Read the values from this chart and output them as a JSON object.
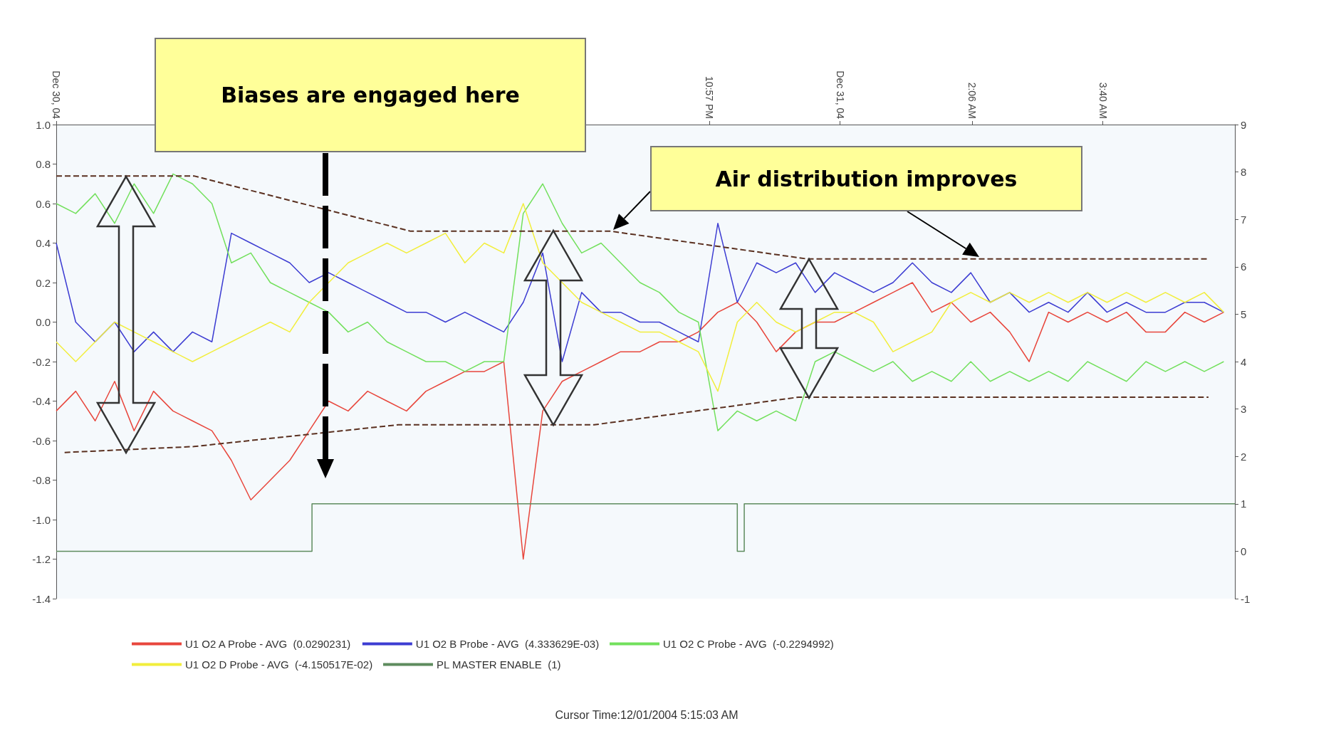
{
  "chart_data": {
    "type": "line",
    "xlim": [
      "2004-12-30T15:07",
      "2004-12-31T05:15"
    ],
    "xticks": [
      {
        "value": "2004-12-30T15:07",
        "label": "Dec 30, 04"
      },
      {
        "value": "2004-12-30T16:41",
        "label": null
      },
      {
        "value": "2004-12-30T18:15",
        "label": null
      },
      {
        "value": "2004-12-30T19:49",
        "label": null
      },
      {
        "value": "2004-12-30T21:23",
        "label": null
      },
      {
        "value": "2004-12-30T22:57",
        "label": "10:57 PM"
      },
      {
        "value": "2004-12-31T00:31",
        "label": "Dec 31, 04"
      },
      {
        "value": "2004-12-31T02:06",
        "label": "2:06 AM"
      },
      {
        "value": "2004-12-31T03:40",
        "label": "3:40 AM"
      }
    ],
    "ylim": [
      -1.4,
      1.0
    ],
    "yticks": [
      {
        "value": 1,
        "label": "1.0"
      },
      {
        "value": 0.8,
        "label": "0.8"
      },
      {
        "value": 0.6,
        "label": "0.6"
      },
      {
        "value": 0.4,
        "label": "0.4"
      },
      {
        "value": 0.2,
        "label": "0.2"
      },
      {
        "value": 0,
        "label": "0.0"
      },
      {
        "value": -0.2,
        "label": "-0.2"
      },
      {
        "value": -0.4,
        "label": "-0.4"
      },
      {
        "value": -0.6,
        "label": "-0.6"
      },
      {
        "value": -0.8,
        "label": "-0.8"
      },
      {
        "value": -1,
        "label": "-1.0"
      },
      {
        "value": -1.2,
        "label": "-1.2"
      },
      {
        "value": -1.4,
        "label": "-1.4"
      }
    ],
    "y2lim": [
      -1,
      9
    ],
    "y2ticks": [
      -1,
      0,
      1,
      2,
      3,
      4,
      5,
      6,
      7,
      8,
      9
    ],
    "x": [
      "2004-12-30T15:07",
      "2004-12-30T15:21",
      "2004-12-30T15:35",
      "2004-12-30T15:49",
      "2004-12-30T16:03",
      "2004-12-30T16:17",
      "2004-12-30T16:31",
      "2004-12-30T16:45",
      "2004-12-30T16:59",
      "2004-12-30T17:13",
      "2004-12-30T17:27",
      "2004-12-30T17:41",
      "2004-12-30T17:55",
      "2004-12-30T18:09",
      "2004-12-30T18:23",
      "2004-12-30T18:37",
      "2004-12-30T18:51",
      "2004-12-30T19:05",
      "2004-12-30T19:19",
      "2004-12-30T19:33",
      "2004-12-30T19:47",
      "2004-12-30T20:01",
      "2004-12-30T20:15",
      "2004-12-30T20:29",
      "2004-12-30T20:43",
      "2004-12-30T20:57",
      "2004-12-30T21:11",
      "2004-12-30T21:25",
      "2004-12-30T21:39",
      "2004-12-30T21:53",
      "2004-12-30T22:07",
      "2004-12-30T22:21",
      "2004-12-30T22:35",
      "2004-12-30T22:49",
      "2004-12-30T23:03",
      "2004-12-30T23:17",
      "2004-12-30T23:31",
      "2004-12-30T23:45",
      "2004-12-30T23:59",
      "2004-12-31T00:13",
      "2004-12-31T00:27",
      "2004-12-31T00:41",
      "2004-12-31T00:55",
      "2004-12-31T01:09",
      "2004-12-31T01:23",
      "2004-12-31T01:37",
      "2004-12-31T01:51",
      "2004-12-31T02:05",
      "2004-12-31T02:19",
      "2004-12-31T02:33",
      "2004-12-31T02:47",
      "2004-12-31T03:01",
      "2004-12-31T03:15",
      "2004-12-31T03:29",
      "2004-12-31T03:43",
      "2004-12-31T03:57",
      "2004-12-31T04:11",
      "2004-12-31T04:25",
      "2004-12-31T04:39",
      "2004-12-31T04:53",
      "2004-12-31T05:07"
    ],
    "legend": "bottom",
    "series": [
      {
        "name": "U1 O2 A Probe - AVG  (0.0290231)",
        "color": "#e8463c",
        "values": [
          -0.45,
          -0.35,
          -0.5,
          -0.3,
          -0.55,
          -0.35,
          -0.45,
          -0.5,
          -0.55,
          -0.7,
          -0.9,
          -0.8,
          -0.7,
          -0.55,
          -0.4,
          -0.45,
          -0.35,
          -0.4,
          -0.45,
          -0.35,
          -0.3,
          -0.25,
          -0.25,
          -0.2,
          -1.2,
          -0.45,
          -0.3,
          -0.25,
          -0.2,
          -0.15,
          -0.15,
          -0.1,
          -0.1,
          -0.05,
          0.05,
          0.1,
          0,
          -0.15,
          -0.05,
          0,
          0,
          0.05,
          0.1,
          0.15,
          0.2,
          0.05,
          0.1,
          0,
          0.05,
          -0.05,
          -0.2,
          0.05,
          0,
          0.05,
          0,
          0.05,
          -0.05,
          -0.05,
          0.05,
          0,
          0.05
        ]
      },
      {
        "name": "U1 O2 B Probe - AVG  (4.333629E-03)",
        "color": "#3c3cd2",
        "values": [
          0.4,
          0,
          -0.1,
          0,
          -0.15,
          -0.05,
          -0.15,
          -0.05,
          -0.1,
          0.45,
          0.4,
          0.35,
          0.3,
          0.2,
          0.25,
          0.2,
          0.15,
          0.1,
          0.05,
          0.05,
          0,
          0.05,
          0,
          -0.05,
          0.1,
          0.35,
          -0.2,
          0.15,
          0.05,
          0.05,
          0,
          0,
          -0.05,
          -0.1,
          0.5,
          0.1,
          0.3,
          0.25,
          0.3,
          0.15,
          0.25,
          0.2,
          0.15,
          0.2,
          0.3,
          0.2,
          0.15,
          0.25,
          0.1,
          0.15,
          0.05,
          0.1,
          0.05,
          0.15,
          0.05,
          0.1,
          0.05,
          0.05,
          0.1,
          0.1,
          0.05
        ]
      },
      {
        "name": "U1 O2 C Probe - AVG  (-0.2294992)",
        "color": "#72e05c",
        "values": [
          0.6,
          0.55,
          0.65,
          0.5,
          0.7,
          0.55,
          0.75,
          0.7,
          0.6,
          0.3,
          0.35,
          0.2,
          0.15,
          0.1,
          0.05,
          -0.05,
          0,
          -0.1,
          -0.15,
          -0.2,
          -0.2,
          -0.25,
          -0.2,
          -0.2,
          0.55,
          0.7,
          0.5,
          0.35,
          0.4,
          0.3,
          0.2,
          0.15,
          0.05,
          0,
          -0.55,
          -0.45,
          -0.5,
          -0.45,
          -0.5,
          -0.2,
          -0.15,
          -0.2,
          -0.25,
          -0.2,
          -0.3,
          -0.25,
          -0.3,
          -0.2,
          -0.3,
          -0.25,
          -0.3,
          -0.25,
          -0.3,
          -0.2,
          -0.25,
          -0.3,
          -0.2,
          -0.25,
          -0.2,
          -0.25,
          -0.2
        ]
      },
      {
        "name": "U1 O2 D Probe - AVG  (-4.150517E-02)",
        "color": "#f2ee3c",
        "values": [
          -0.1,
          -0.2,
          -0.1,
          0,
          -0.05,
          -0.1,
          -0.15,
          -0.2,
          -0.15,
          -0.1,
          -0.05,
          0,
          -0.05,
          0.1,
          0.2,
          0.3,
          0.35,
          0.4,
          0.35,
          0.4,
          0.45,
          0.3,
          0.4,
          0.35,
          0.6,
          0.3,
          0.2,
          0.1,
          0.05,
          0,
          -0.05,
          -0.05,
          -0.1,
          -0.15,
          -0.35,
          0,
          0.1,
          0,
          -0.05,
          0,
          0.05,
          0.05,
          0,
          -0.15,
          -0.1,
          -0.05,
          0.1,
          0.15,
          0.1,
          0.15,
          0.1,
          0.15,
          0.1,
          0.15,
          0.1,
          0.15,
          0.1,
          0.15,
          0.1,
          0.15,
          0.05
        ]
      },
      {
        "name": "PL MASTER ENABLE  (1)",
        "color": "#5e8c5e",
        "type": "step",
        "axis": "y2",
        "x": [
          "2004-12-30T15:07",
          "2004-12-30T18:11",
          "2004-12-30T23:17",
          "2004-12-30T23:22",
          "2004-12-31T05:15"
        ],
        "values": [
          0,
          1,
          0,
          1,
          1
        ]
      },
      {
        "color": "#5a3020",
        "line_style": "dashed",
        "x": [
          "2004-12-30T15:07",
          "2004-12-30T16:46",
          "2004-12-30T19:22",
          "2004-12-30T21:46",
          "2004-12-31T00:07",
          "2004-12-31T04:56"
        ],
        "values": [
          0.74,
          0.74,
          0.46,
          0.46,
          0.32,
          0.32
        ]
      },
      {
        "color": "#5a3020",
        "line_style": "dashed",
        "x": [
          "2004-12-30T15:13",
          "2004-12-30T16:46",
          "2004-12-30T19:13",
          "2004-12-30T21:34",
          "2004-12-31T00:01",
          "2004-12-31T04:56"
        ],
        "values": [
          -0.66,
          -0.63,
          -0.52,
          -0.52,
          -0.38,
          -0.38
        ]
      }
    ],
    "annotations": [
      "Biases are engaged here",
      "Air distribution improves",
      "Cursor Time:12/01/2004 5:15:03 AM"
    ]
  }
}
